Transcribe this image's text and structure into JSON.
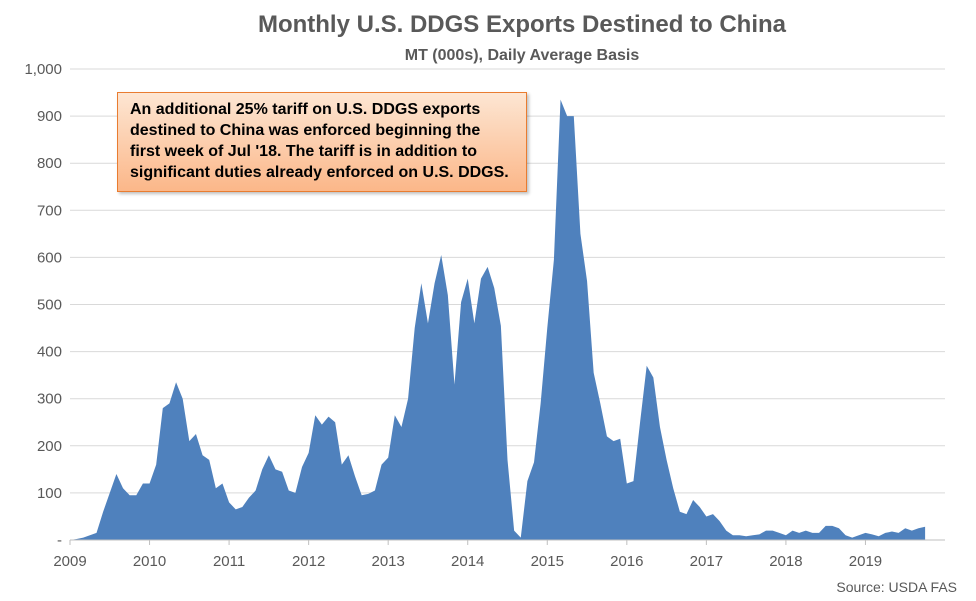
{
  "chart_data": {
    "type": "area",
    "title": "Monthly U.S. DDGS Exports Destined to China",
    "subtitle": "MT (000s), Daily Average Basis",
    "ylim": [
      0,
      1000
    ],
    "yticks": [
      "-",
      "100",
      "200",
      "300",
      "400",
      "500",
      "600",
      "700",
      "800",
      "900",
      "1,000"
    ],
    "xticks": [
      "2009",
      "2010",
      "2011",
      "2012",
      "2013",
      "2014",
      "2015",
      "2016",
      "2017",
      "2018",
      "2019"
    ],
    "x_start_year": 2009,
    "grid": true,
    "color": "#4f81bd",
    "values": [
      0,
      2,
      5,
      10,
      15,
      60,
      100,
      140,
      110,
      95,
      95,
      120,
      120,
      160,
      280,
      290,
      335,
      300,
      210,
      225,
      180,
      170,
      110,
      120,
      80,
      65,
      70,
      90,
      105,
      150,
      180,
      150,
      145,
      105,
      100,
      155,
      185,
      265,
      245,
      262,
      250,
      160,
      180,
      135,
      95,
      98,
      105,
      160,
      175,
      265,
      240,
      300,
      450,
      545,
      460,
      545,
      605,
      520,
      330,
      505,
      555,
      460,
      555,
      580,
      535,
      455,
      170,
      20,
      5,
      125,
      165,
      290,
      450,
      595,
      935,
      900,
      900,
      650,
      550,
      355,
      290,
      220,
      210,
      215,
      120,
      125,
      250,
      370,
      345,
      240,
      170,
      110,
      60,
      55,
      85,
      70,
      50,
      55,
      40,
      20,
      10,
      10,
      8,
      10,
      12,
      20,
      20,
      15,
      10,
      20,
      15,
      20,
      15,
      15,
      30,
      30,
      25,
      10,
      5,
      10,
      15,
      12,
      8,
      15,
      18,
      15,
      25,
      20,
      25,
      28
    ]
  },
  "annotation": {
    "line1": "An additional 25% tariff on U.S. DDGS exports",
    "line2": "destined to China was enforced beginning the",
    "line3": "first week of Jul '18. The tariff is in addition to",
    "line4": "significant duties already enforced on U.S. DDGS."
  },
  "source": "Source: USDA FAS"
}
